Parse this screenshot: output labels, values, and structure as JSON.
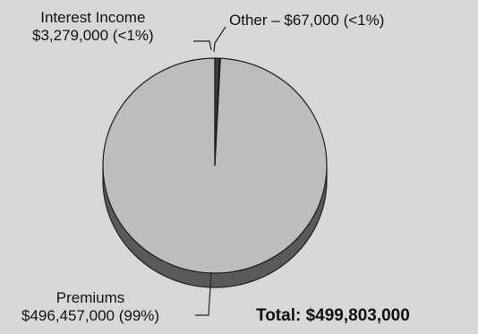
{
  "chart_data": {
    "type": "pie",
    "title": "",
    "slices": [
      {
        "label": "Premiums",
        "value_text": "$496,457,000 (99%)",
        "value": 496457000
      },
      {
        "label": "Interest Income",
        "value_text": "$3,279,000 (<1%)",
        "value": 3279000
      },
      {
        "label": "Other",
        "value_text": "$67,000 (<1%)",
        "value": 67000
      }
    ],
    "total_label": "Total:",
    "total_value": "$499,803,000",
    "colors": {
      "premiums": "#bdbdbd",
      "interest": "#3c3c3c",
      "other": "#111111",
      "rim": "#5a5a5a",
      "outline": "#1e1e1e",
      "background": "#d9d9d9"
    }
  },
  "labels": {
    "interest_line1": "Interest Income",
    "interest_line2": "$3,279,000 (<1%)",
    "other": "Other – $67,000 (<1%)",
    "premiums_line1": "Premiums",
    "premiums_line2": "$496,457,000 (99%)"
  }
}
